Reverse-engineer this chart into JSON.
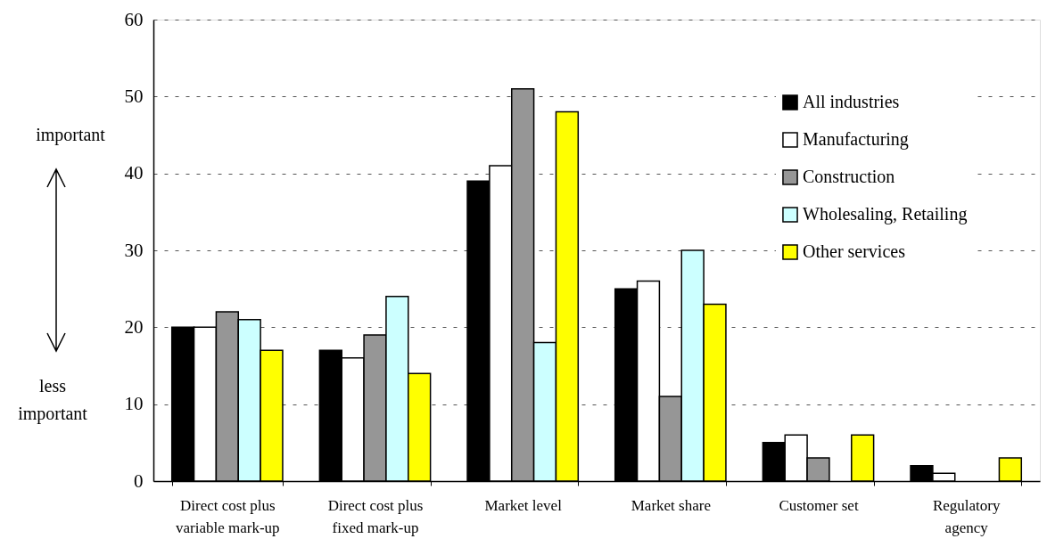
{
  "chart_data": {
    "type": "bar",
    "categories": [
      "Direct cost plus variable mark-up",
      "Direct cost plus fixed mark-up",
      "Market level",
      "Market share",
      "Customer set",
      "Regulatory agency"
    ],
    "series": [
      {
        "name": "All industries",
        "color": "#000000",
        "values": [
          20,
          17,
          39,
          25,
          5,
          2
        ]
      },
      {
        "name": "Manufacturing",
        "color": "#ffffff",
        "values": [
          20,
          16,
          41,
          26,
          6,
          1
        ]
      },
      {
        "name": "Construction",
        "color": "#969696",
        "values": [
          22,
          19,
          51,
          11,
          3,
          null
        ]
      },
      {
        "name": "Wholesaling, Retailing",
        "color": "#ccffff",
        "values": [
          21,
          24,
          18,
          30,
          null,
          null
        ]
      },
      {
        "name": "Other services",
        "color": "#ffff00",
        "values": [
          17,
          14,
          48,
          23,
          6,
          3
        ]
      }
    ],
    "ylim": [
      0,
      60
    ],
    "yticks": [
      0,
      10,
      20,
      30,
      40,
      50,
      60
    ],
    "grid": "y",
    "legend": "top right",
    "annotations": [
      "important",
      "less important"
    ]
  }
}
